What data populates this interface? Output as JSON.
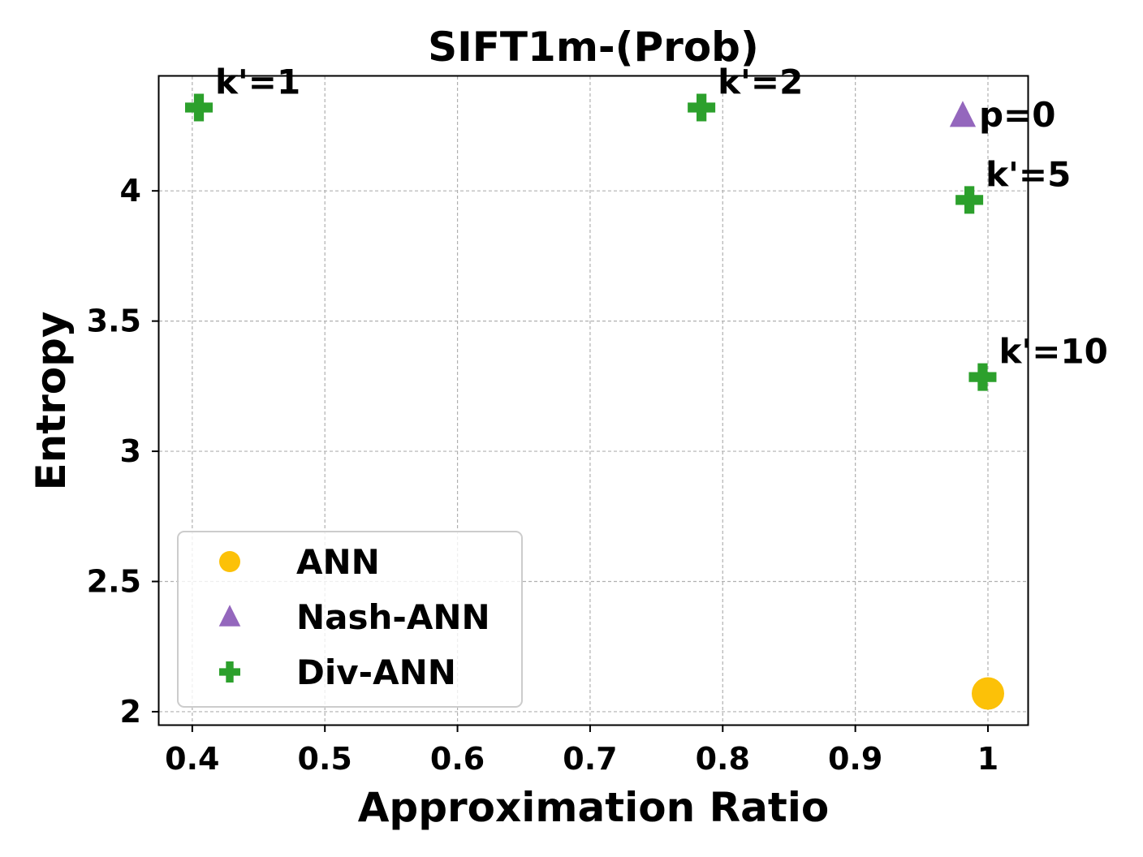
{
  "chart_data": {
    "type": "scatter",
    "title": "SIFT1m-(Prob)",
    "xlabel": "Approximation Ratio",
    "ylabel": "Entropy",
    "xlim": [
      0.375,
      1.03
    ],
    "ylim": [
      1.95,
      4.44
    ],
    "xticks": [
      0.4,
      0.5,
      0.6,
      0.7,
      0.8,
      0.9,
      1.0
    ],
    "xtick_labels": [
      "0.4",
      "0.5",
      "0.6",
      "0.7",
      "0.8",
      "0.9",
      "1"
    ],
    "yticks": [
      2,
      2.5,
      3,
      3.5,
      4
    ],
    "ytick_labels": [
      "2",
      "2.5",
      "3",
      "3.5",
      "4"
    ],
    "grid": true,
    "legend_position": "lower-left",
    "series": [
      {
        "name": "ANN",
        "marker": "circle",
        "color": "#FCC108",
        "points": [
          {
            "x": 1.0,
            "y": 2.07,
            "label": ""
          }
        ]
      },
      {
        "name": "Nash-ANN",
        "marker": "triangle",
        "color": "#9467BD",
        "points": [
          {
            "x": 0.981,
            "y": 4.29,
            "label": "p=0"
          }
        ]
      },
      {
        "name": "Div-ANN",
        "marker": "plus",
        "color": "#2CA02C",
        "points": [
          {
            "x": 0.405,
            "y": 4.32,
            "label": "k'=1"
          },
          {
            "x": 0.784,
            "y": 4.32,
            "label": "k'=2"
          },
          {
            "x": 0.986,
            "y": 3.965,
            "label": "k'=5"
          },
          {
            "x": 0.996,
            "y": 3.285,
            "label": "k'=10"
          }
        ]
      }
    ]
  }
}
